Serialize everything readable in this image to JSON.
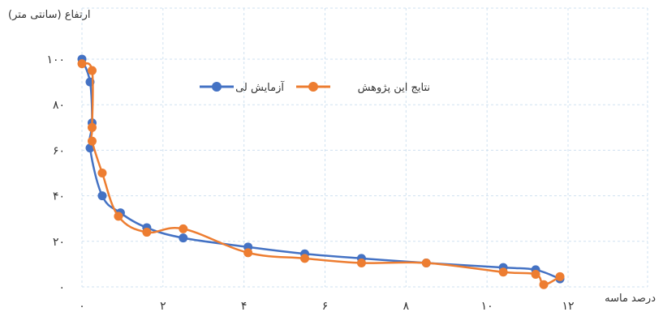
{
  "chart_data": {
    "type": "line",
    "ylabel": "ارتفاع (سانتی متر)",
    "xlabel": "درصد ماسه",
    "xlim": [
      0,
      12
    ],
    "ylim": [
      0,
      100
    ],
    "x_ticks": [
      0,
      2,
      4,
      6,
      8,
      10,
      12
    ],
    "y_ticks": [
      0,
      20,
      40,
      60,
      80,
      100
    ],
    "x_tick_labels": [
      "۰",
      "۲",
      "۴",
      "۶",
      "۸",
      "۱۰",
      "۱۲"
    ],
    "y_tick_labels": [
      "۰",
      "۲۰",
      "۴۰",
      "۶۰",
      "۸۰",
      "۱۰۰"
    ],
    "grid": true,
    "legend_position": "top-center",
    "series": [
      {
        "name": "آزمایش لی",
        "color": "#4472C4",
        "points": [
          [
            0.0,
            100
          ],
          [
            0.2,
            90
          ],
          [
            0.25,
            72
          ],
          [
            0.2,
            61
          ],
          [
            0.5,
            40
          ],
          [
            0.95,
            32.5
          ],
          [
            1.6,
            26
          ],
          [
            2.5,
            21.5
          ],
          [
            4.1,
            17.5
          ],
          [
            5.5,
            14.5
          ],
          [
            6.9,
            12.5
          ],
          [
            8.5,
            10.5
          ],
          [
            10.4,
            8.5
          ],
          [
            11.2,
            7.5
          ],
          [
            11.8,
            3.5
          ]
        ]
      },
      {
        "name": "نتایج این پژوهش",
        "color": "#ED7D31",
        "points": [
          [
            0.0,
            98
          ],
          [
            0.25,
            95
          ],
          [
            0.25,
            70
          ],
          [
            0.25,
            64
          ],
          [
            0.5,
            50
          ],
          [
            0.9,
            31
          ],
          [
            1.6,
            24
          ],
          [
            2.5,
            25.5
          ],
          [
            4.1,
            15
          ],
          [
            5.5,
            12.5
          ],
          [
            6.9,
            10.5
          ],
          [
            8.5,
            10.5
          ],
          [
            10.4,
            6.5
          ],
          [
            11.2,
            5.5
          ],
          [
            11.4,
            1
          ],
          [
            11.8,
            4.5
          ]
        ]
      }
    ]
  }
}
